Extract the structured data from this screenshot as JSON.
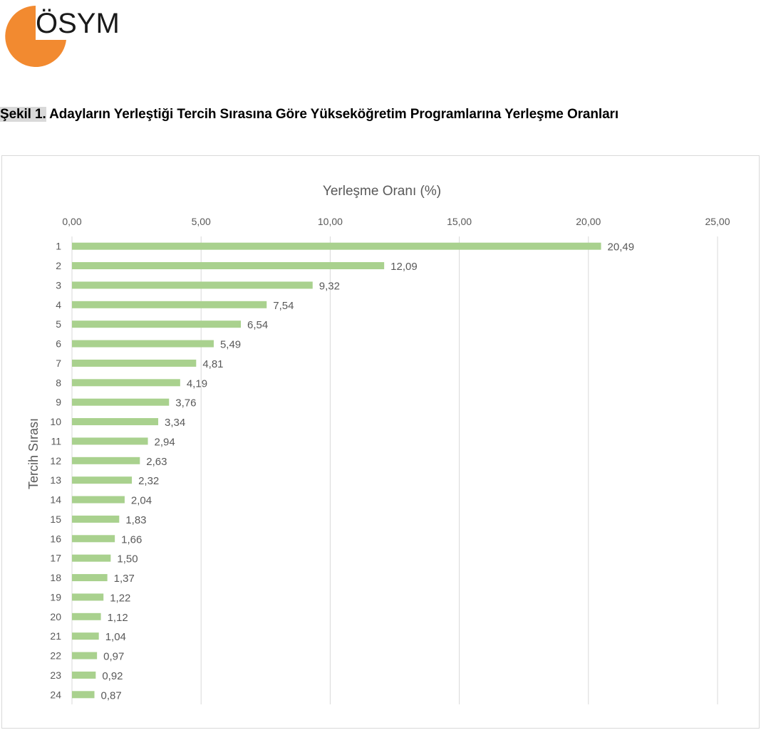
{
  "logo": {
    "text": "ÖSYM",
    "accent_color": "#f28a30"
  },
  "figure": {
    "label": "Şekil 1.",
    "title": " Adayların Yerleştiği Tercih Sırasına Göre Yükseköğretim Programlarına Yerleşme Oranları"
  },
  "chart_data": {
    "type": "bar",
    "orientation": "horizontal",
    "title": "Yerleşme Oranı (%)",
    "xlabel": "Yerleşme Oranı (%)",
    "ylabel": "Tercih Sırası",
    "xlim": [
      0,
      25
    ],
    "xticks": [
      "0,00",
      "5,00",
      "10,00",
      "15,00",
      "20,00",
      "25,00"
    ],
    "x_axis_position": "top",
    "grid": true,
    "bar_color": "#a9d18e",
    "categories": [
      "1",
      "2",
      "3",
      "4",
      "5",
      "6",
      "7",
      "8",
      "9",
      "10",
      "11",
      "12",
      "13",
      "14",
      "15",
      "16",
      "17",
      "18",
      "19",
      "20",
      "21",
      "22",
      "23",
      "24"
    ],
    "values": [
      20.49,
      12.09,
      9.32,
      7.54,
      6.54,
      5.49,
      4.81,
      4.19,
      3.76,
      3.34,
      2.94,
      2.63,
      2.32,
      2.04,
      1.83,
      1.66,
      1.5,
      1.37,
      1.22,
      1.12,
      1.04,
      0.97,
      0.92,
      0.87
    ],
    "value_labels": [
      "20,49",
      "12,09",
      "9,32",
      "7,54",
      "6,54",
      "5,49",
      "4,81",
      "4,19",
      "3,76",
      "3,34",
      "2,94",
      "2,63",
      "2,32",
      "2,04",
      "1,83",
      "1,66",
      "1,50",
      "1,37",
      "1,22",
      "1,12",
      "1,04",
      "0,97",
      "0,92",
      "0,87"
    ]
  }
}
